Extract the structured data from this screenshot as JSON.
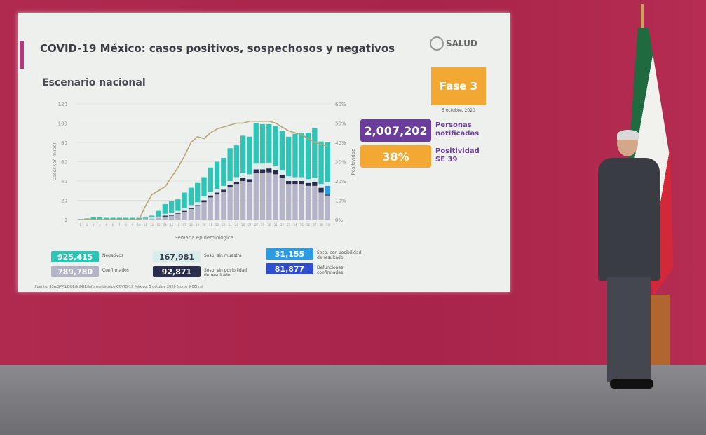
{
  "slide": {
    "title": "COVID-19 México: casos positivos, sospechosos y negativos",
    "subtitle": "Escenario nacional",
    "logo": "SALUD",
    "phase": "Fase 3",
    "date": "5 octubre, 2020",
    "notified_value": "2,007,202",
    "notified_label": [
      "Personas",
      "notificadas"
    ],
    "positivity_value": "38%",
    "positivity_label": [
      "Positividad",
      "SE 39"
    ],
    "legend": [
      {
        "value": "925,415",
        "label": "Negativos",
        "color": "#2ec4b6"
      },
      {
        "value": "789,780",
        "label": "Confirmados",
        "color": "#b4b4c8"
      },
      {
        "value": "167,981",
        "label": "Sosp. sin muestra",
        "color": "#d8ecec"
      },
      {
        "value": "92,871",
        "label": "Sosp. sin posibilidad de resultado",
        "color": "#2a2d4e"
      },
      {
        "value": "31,155",
        "label": "Sosp. con posibilidad de resultado",
        "color": "#2d9be0"
      },
      {
        "value": "81,877",
        "label": "Defunciones confirmadas",
        "color": "#2f4fd0"
      }
    ],
    "source": "Fuente: SSA/SPPS/DGE/InDRE/Informe técnico COVID-19 México, 5 octubre 2020 (corte 9:00hrs)",
    "colors": {
      "notified": "#6a3d9a",
      "positivity": "#f3a833",
      "phase": "#f3a833",
      "line": "#b8a878"
    }
  },
  "chart_data": {
    "type": "bar",
    "xlabel": "Semana epidemiológica",
    "ylabel": "Casos (en miles)",
    "y2label": "Positividad",
    "ylim": [
      0,
      120
    ],
    "y2lim": [
      0,
      60
    ],
    "yticks": [
      "0",
      "20",
      "40",
      "60",
      "80",
      "100",
      "120"
    ],
    "y2ticks": [
      "0%",
      "10%",
      "20%",
      "30%",
      "40%",
      "50%",
      "60%"
    ],
    "grid": true,
    "stacked": true,
    "categories": [
      1,
      2,
      3,
      4,
      5,
      6,
      7,
      8,
      9,
      10,
      11,
      12,
      13,
      14,
      15,
      16,
      17,
      18,
      19,
      20,
      21,
      22,
      23,
      24,
      25,
      26,
      27,
      28,
      29,
      30,
      31,
      32,
      33,
      34,
      35,
      36,
      37,
      38,
      39
    ],
    "series": [
      {
        "name": "Confirmados",
        "values": [
          0.1,
          0.2,
          0.3,
          0.3,
          0.3,
          0.3,
          0.3,
          0.3,
          0.3,
          0.3,
          1,
          1,
          2,
          3,
          4,
          6,
          8,
          11,
          14,
          18,
          23,
          26,
          29,
          34,
          37,
          40,
          39,
          48,
          48,
          49,
          47,
          43,
          37,
          37,
          37,
          35,
          35,
          28,
          25
        ]
      },
      {
        "name": "Sosp. sin posibilidad de resultado",
        "values": [
          0,
          0,
          0,
          0,
          0,
          0,
          0,
          0,
          0,
          0,
          0,
          0,
          0,
          1,
          1,
          1,
          1,
          1,
          1,
          2,
          2,
          2,
          2,
          2,
          2,
          3,
          3,
          4,
          4,
          4,
          4,
          3,
          3,
          3,
          3,
          3,
          4,
          5,
          1
        ]
      },
      {
        "name": "Sosp. con posibilidad de resultado",
        "values": [
          0,
          0,
          0,
          0,
          0,
          0,
          0,
          0,
          0,
          0,
          0,
          0,
          0,
          0,
          0,
          0,
          0,
          0,
          0,
          0,
          0,
          0,
          0,
          0,
          0,
          0,
          0,
          0,
          0,
          0,
          0,
          0,
          0,
          0,
          0,
          0,
          0,
          0,
          9
        ]
      },
      {
        "name": "Sosp. sin muestra",
        "values": [
          0,
          0,
          0,
          0,
          0,
          0,
          0,
          0,
          0,
          0,
          0,
          1,
          1,
          2,
          2,
          2,
          3,
          3,
          3,
          4,
          4,
          4,
          4,
          4,
          5,
          5,
          5,
          6,
          6,
          6,
          5,
          5,
          5,
          4,
          4,
          4,
          4,
          4,
          4
        ]
      },
      {
        "name": "Negativos",
        "values": [
          0.5,
          1,
          2,
          2,
          1.5,
          1.5,
          1.5,
          1.5,
          1.5,
          1.5,
          1,
          2,
          6,
          10,
          12,
          12,
          16,
          18,
          20,
          20,
          25,
          28,
          29,
          34,
          33,
          39,
          39,
          42,
          41,
          40,
          41,
          41,
          41,
          45,
          46,
          48,
          52,
          44,
          41
        ]
      }
    ],
    "positivity": [
      0,
      0,
      0,
      0,
      0,
      0,
      0,
      0,
      0,
      0,
      7,
      13,
      15,
      17,
      22,
      27,
      33,
      40,
      43,
      42,
      45,
      47,
      48,
      49,
      50,
      50,
      51,
      51,
      51,
      51,
      50,
      48,
      46,
      45,
      44,
      42,
      40,
      39,
      38
    ]
  }
}
